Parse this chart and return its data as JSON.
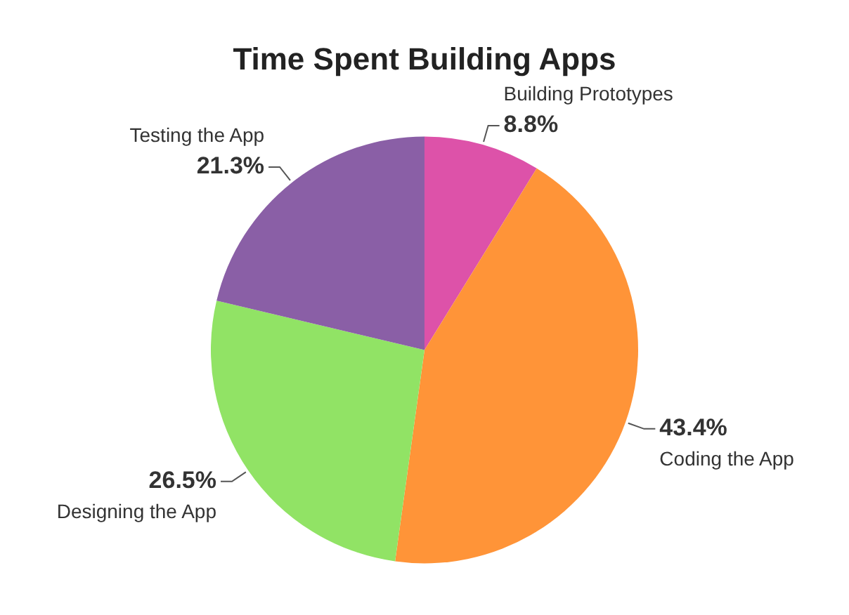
{
  "chart_data": {
    "type": "pie",
    "title": "Time Spent Building Apps",
    "categories": [
      "Building Prototypes",
      "Coding the App",
      "Designing the App",
      "Testing the App"
    ],
    "values": [
      8.8,
      43.4,
      26.5,
      21.3
    ],
    "value_labels": [
      "8.8%",
      "43.4%",
      "26.5%",
      "21.3%"
    ],
    "colors": [
      "#dd52a9",
      "#ff9438",
      "#91e365",
      "#8a5fa6"
    ],
    "legend": false
  }
}
